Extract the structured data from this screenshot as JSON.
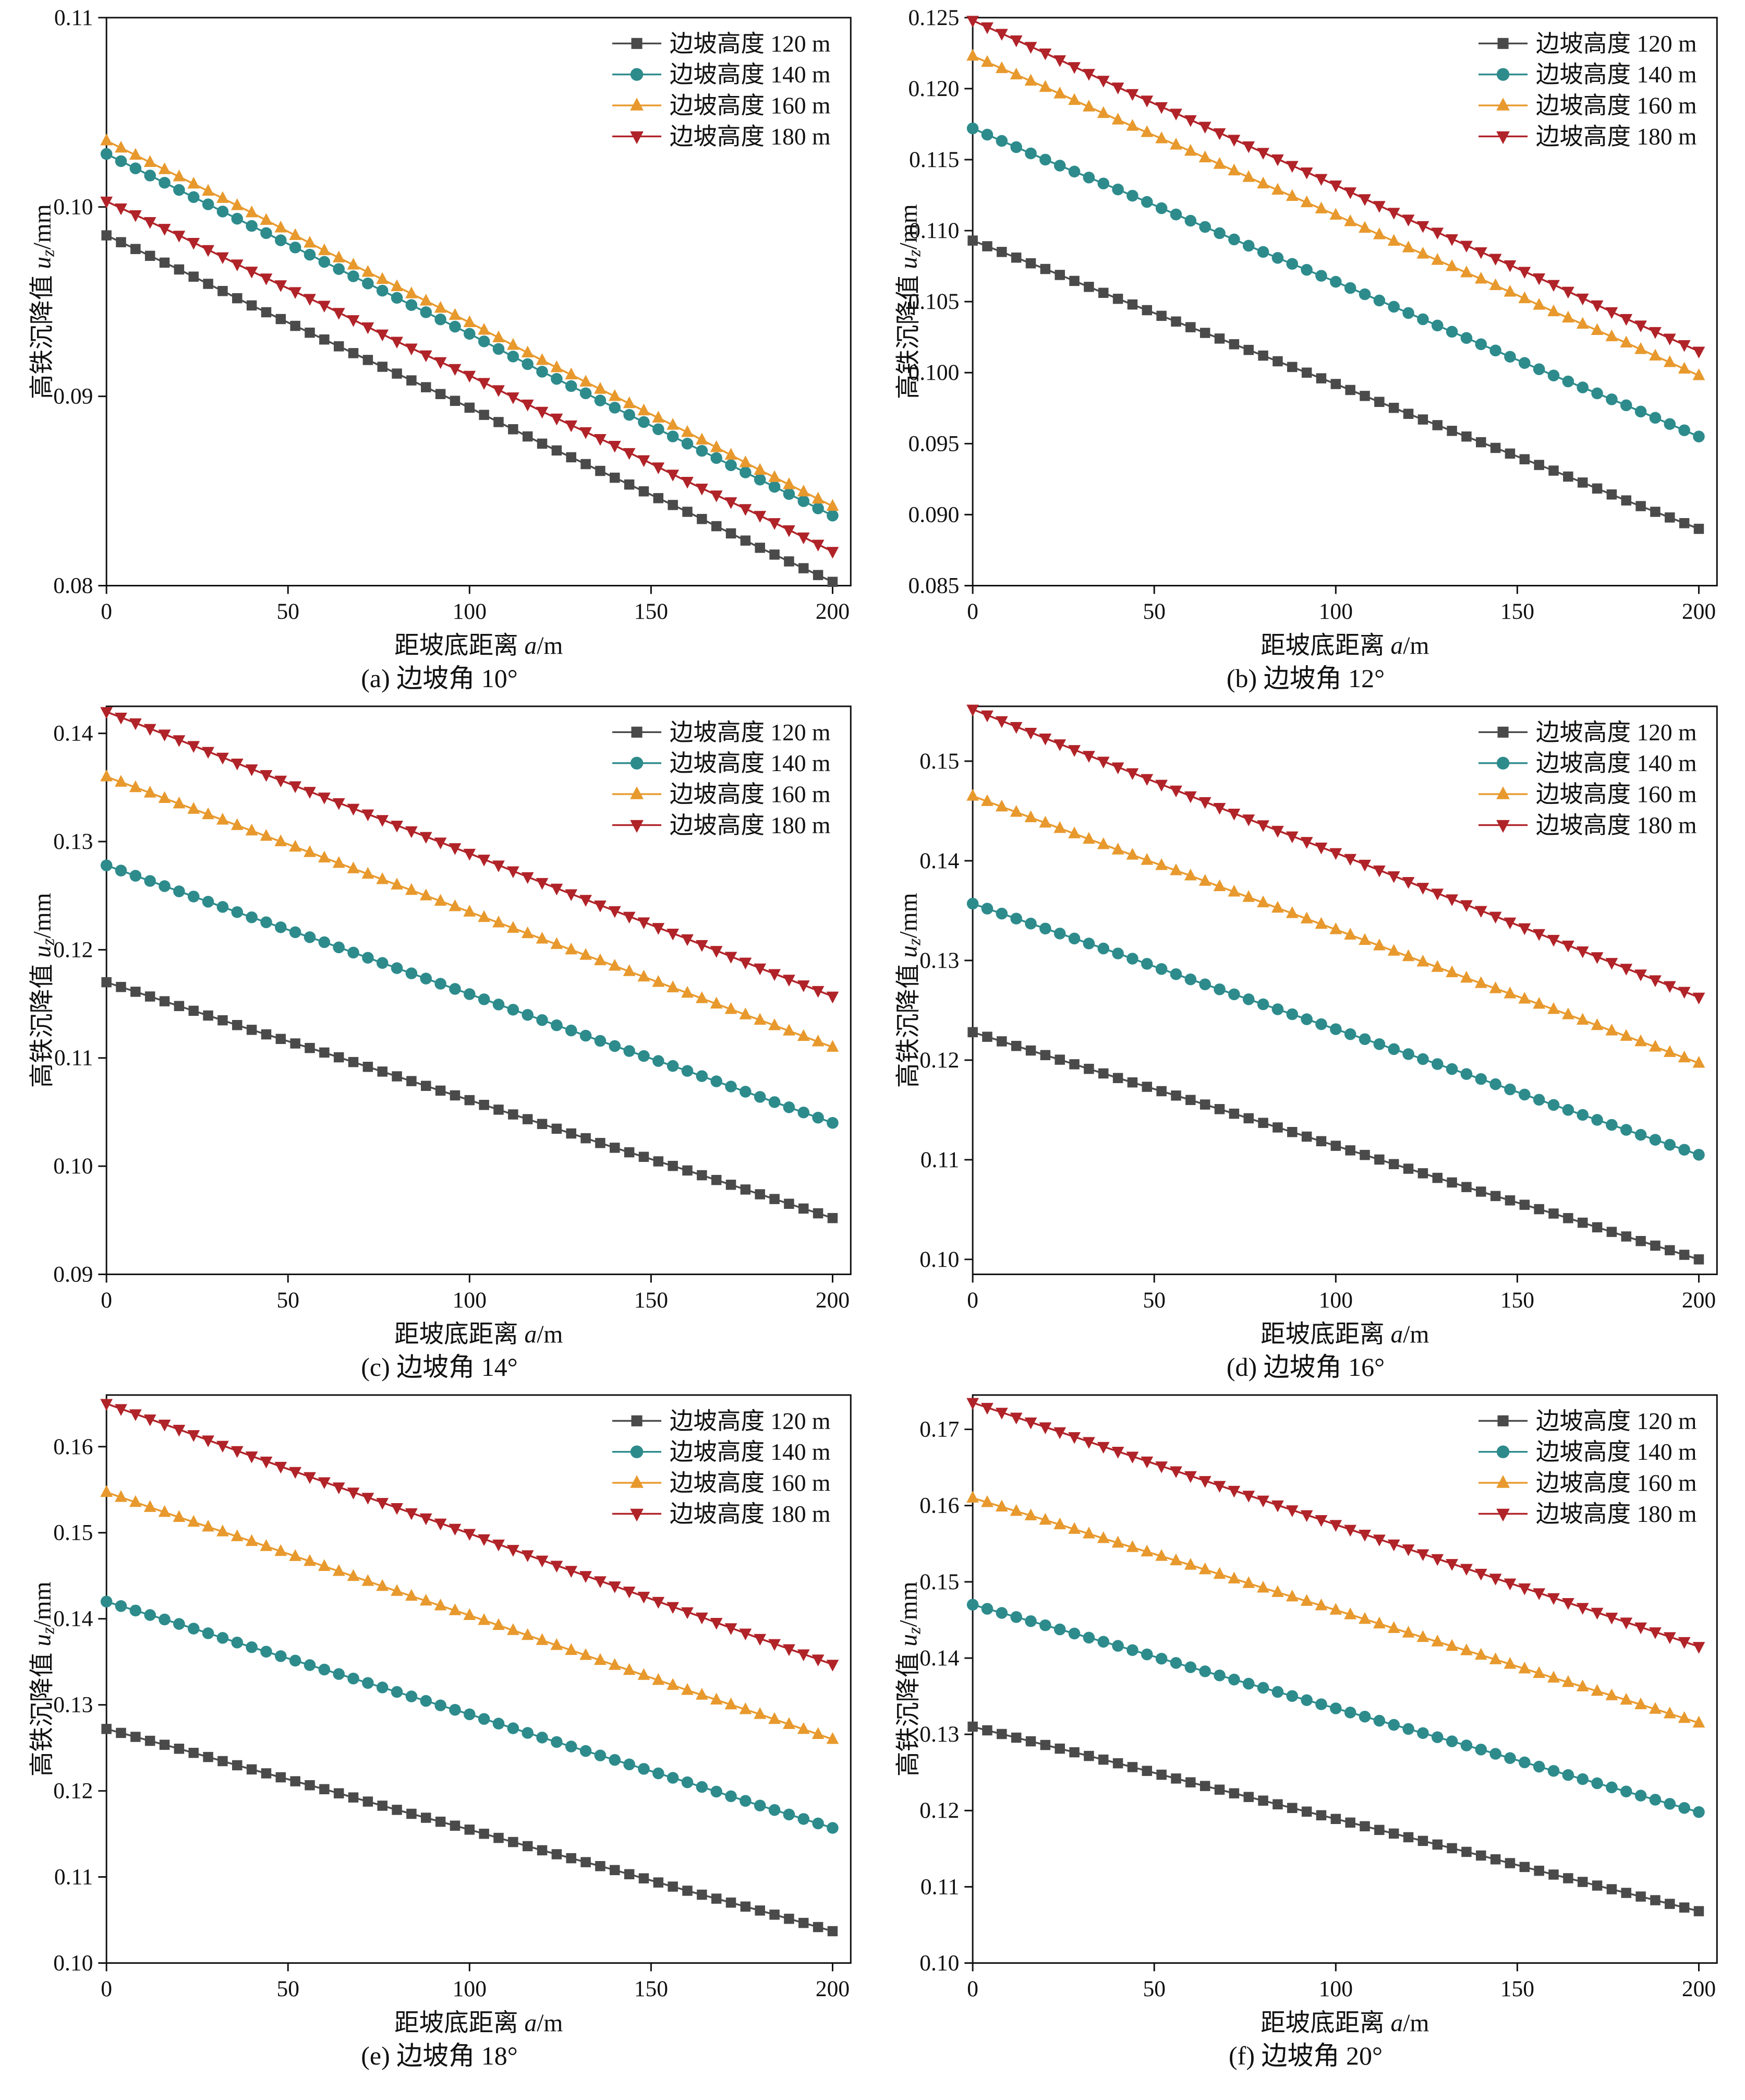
{
  "chart_data": {
    "type": "line",
    "x": [
      0,
      20,
      40,
      60,
      80,
      100,
      120,
      140,
      160,
      180,
      200
    ],
    "xlim": [
      0,
      205
    ],
    "xticks": [
      0,
      50,
      100,
      150,
      200
    ],
    "marker_interval": 4,
    "xlabel_segments": [
      {
        "t": "距坡底距离 "
      },
      {
        "t": "a",
        "i": true
      },
      {
        "t": "/m"
      }
    ],
    "ylabel_segments": [
      {
        "t": "高铁沉降值 "
      },
      {
        "t": "u",
        "i": true
      },
      {
        "t": "z",
        "i": true,
        "sub": true
      },
      {
        "t": "/mm"
      }
    ],
    "axis_color": "#111111",
    "series": [
      {
        "name": "边坡高度 120 m",
        "color": "#4a4a4a",
        "marker": "square"
      },
      {
        "name": "边坡高度 140 m",
        "color": "#2e8b8c",
        "marker": "circle"
      },
      {
        "name": "边坡高度 160 m",
        "color": "#e8992d",
        "marker": "triangle-up"
      },
      {
        "name": "边坡高度 180 m",
        "color": "#b02328",
        "marker": "triangle-down"
      }
    ],
    "panels": [
      {
        "caption": "(a) 边坡角 10°",
        "ylim": [
          0.08,
          0.11
        ],
        "yticks": [
          0.08,
          0.09,
          0.1,
          0.11
        ],
        "decimals": 2,
        "values": [
          [
            0.0985,
            0.0967,
            0.0948,
            0.093,
            0.0912,
            0.0894,
            0.0875,
            0.0857,
            0.0839,
            0.082,
            0.0802
          ],
          [
            0.1028,
            0.1009,
            0.099,
            0.0971,
            0.0952,
            0.0933,
            0.0913,
            0.0894,
            0.0875,
            0.0856,
            0.0837
          ],
          [
            0.1035,
            0.1016,
            0.0997,
            0.0977,
            0.0958,
            0.0939,
            0.0919,
            0.09,
            0.0881,
            0.0861,
            0.0842
          ],
          [
            0.1003,
            0.0985,
            0.0966,
            0.0948,
            0.0929,
            0.0911,
            0.0892,
            0.0874,
            0.0855,
            0.0837,
            0.0818
          ]
        ]
      },
      {
        "caption": "(b) 边坡角 12°",
        "ylim": [
          0.085,
          0.125
        ],
        "yticks": [
          0.085,
          0.09,
          0.095,
          0.1,
          0.105,
          0.11,
          0.115,
          0.12,
          0.125
        ],
        "decimals": 3,
        "values": [
          [
            0.1093,
            0.1073,
            0.1052,
            0.1032,
            0.1012,
            0.0992,
            0.0971,
            0.0951,
            0.0931,
            0.091,
            0.089
          ],
          [
            0.1172,
            0.115,
            0.1129,
            0.1107,
            0.1085,
            0.1064,
            0.1042,
            0.102,
            0.0998,
            0.0977,
            0.0955
          ],
          [
            0.1223,
            0.1201,
            0.1178,
            0.1156,
            0.1133,
            0.1111,
            0.1088,
            0.1066,
            0.1043,
            0.1021,
            0.0998
          ],
          [
            0.1248,
            0.1225,
            0.1201,
            0.1178,
            0.1155,
            0.1132,
            0.1108,
            0.1085,
            0.1062,
            0.1038,
            0.1015
          ]
        ]
      },
      {
        "caption": "(c) 边坡角 14°",
        "ylim": [
          0.09,
          0.1425
        ],
        "yticks": [
          0.09,
          0.1,
          0.11,
          0.12,
          0.13,
          0.14
        ],
        "decimals": 2,
        "values": [
          [
            0.117,
            0.1148,
            0.1126,
            0.1105,
            0.1083,
            0.1061,
            0.1039,
            0.1017,
            0.0996,
            0.0974,
            0.0952
          ],
          [
            0.1278,
            0.1254,
            0.123,
            0.1207,
            0.1183,
            0.1159,
            0.1135,
            0.1111,
            0.1088,
            0.1064,
            0.104
          ],
          [
            0.136,
            0.1335,
            0.131,
            0.1285,
            0.126,
            0.1235,
            0.121,
            0.1185,
            0.116,
            0.1135,
            0.111
          ],
          [
            0.142,
            0.1394,
            0.1367,
            0.1341,
            0.1315,
            0.1289,
            0.1262,
            0.1236,
            0.121,
            0.1183,
            0.1157
          ]
        ]
      },
      {
        "caption": "(d) 边坡角 16°",
        "ylim": [
          0.0985,
          0.1555
        ],
        "yticks": [
          0.1,
          0.11,
          0.12,
          0.13,
          0.14,
          0.15
        ],
        "decimals": 2,
        "values": [
          [
            0.1228,
            0.1205,
            0.1182,
            0.116,
            0.1137,
            0.1114,
            0.1091,
            0.1068,
            0.1046,
            0.1023,
            0.1
          ],
          [
            0.1357,
            0.1332,
            0.1307,
            0.1281,
            0.1256,
            0.1231,
            0.1206,
            0.1181,
            0.1155,
            0.113,
            0.1105
          ],
          [
            0.1465,
            0.1438,
            0.1411,
            0.1385,
            0.1358,
            0.1331,
            0.1304,
            0.1277,
            0.1251,
            0.1224,
            0.1197
          ],
          [
            0.1552,
            0.1523,
            0.1494,
            0.1465,
            0.1436,
            0.1408,
            0.1379,
            0.135,
            0.1321,
            0.1292,
            0.1263
          ]
        ]
      },
      {
        "caption": "(e) 边坡角 18°",
        "ylim": [
          0.1,
          0.166
        ],
        "yticks": [
          0.1,
          0.11,
          0.12,
          0.13,
          0.14,
          0.15,
          0.16
        ],
        "decimals": 2,
        "values": [
          [
            0.1272,
            0.1249,
            0.1225,
            0.1202,
            0.1178,
            0.1155,
            0.1131,
            0.1108,
            0.1084,
            0.1061,
            0.1037
          ],
          [
            0.142,
            0.1394,
            0.1367,
            0.1341,
            0.1315,
            0.1289,
            0.1262,
            0.1236,
            0.121,
            0.1183,
            0.1157
          ],
          [
            0.1547,
            0.1518,
            0.149,
            0.1461,
            0.1432,
            0.1404,
            0.1375,
            0.1346,
            0.1317,
            0.1289,
            0.126
          ],
          [
            0.165,
            0.162,
            0.1589,
            0.1559,
            0.1529,
            0.1499,
            0.1468,
            0.1438,
            0.1408,
            0.1377,
            0.1347
          ]
        ]
      },
      {
        "caption": "(f) 边坡角 20°",
        "ylim": [
          0.1,
          0.1745
        ],
        "yticks": [
          0.1,
          0.11,
          0.12,
          0.13,
          0.14,
          0.15,
          0.16,
          0.17
        ],
        "decimals": 2,
        "values": [
          [
            0.131,
            0.1286,
            0.1262,
            0.1237,
            0.1213,
            0.1189,
            0.1165,
            0.1141,
            0.1116,
            0.1092,
            0.1068
          ],
          [
            0.147,
            0.1443,
            0.1416,
            0.1388,
            0.1361,
            0.1334,
            0.1307,
            0.128,
            0.1252,
            0.1225,
            0.1198
          ],
          [
            0.161,
            0.1581,
            0.1551,
            0.1522,
            0.1492,
            0.1463,
            0.1433,
            0.1404,
            0.1374,
            0.1345,
            0.1315
          ],
          [
            0.1735,
            0.1703,
            0.1671,
            0.1639,
            0.1607,
            0.1575,
            0.1543,
            0.1511,
            0.1479,
            0.1447,
            0.1415
          ]
        ]
      }
    ]
  }
}
